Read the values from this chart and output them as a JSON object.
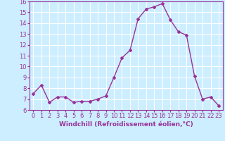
{
  "x": [
    0,
    1,
    2,
    3,
    4,
    5,
    6,
    7,
    8,
    9,
    10,
    11,
    12,
    13,
    14,
    15,
    16,
    17,
    18,
    19,
    20,
    21,
    22,
    23
  ],
  "y": [
    7.5,
    8.3,
    6.7,
    7.2,
    7.2,
    6.7,
    6.8,
    6.8,
    7.0,
    7.3,
    9.0,
    10.8,
    11.5,
    14.4,
    15.3,
    15.5,
    15.8,
    14.3,
    13.2,
    12.9,
    9.1,
    7.0,
    7.2,
    6.4
  ],
  "line_color": "#993399",
  "marker": "D",
  "marker_size": 2.0,
  "linewidth": 1.0,
  "xlabel": "Windchill (Refroidissement éolien,°C)",
  "ylabel": "",
  "xlim": [
    -0.5,
    23.5
  ],
  "ylim": [
    6,
    16
  ],
  "yticks": [
    6,
    7,
    8,
    9,
    10,
    11,
    12,
    13,
    14,
    15,
    16
  ],
  "xticks": [
    0,
    1,
    2,
    3,
    4,
    5,
    6,
    7,
    8,
    9,
    10,
    11,
    12,
    13,
    14,
    15,
    16,
    17,
    18,
    19,
    20,
    21,
    22,
    23
  ],
  "xtick_labels": [
    "0",
    "1",
    "2",
    "3",
    "4",
    "5",
    "6",
    "7",
    "8",
    "9",
    "10",
    "11",
    "12",
    "13",
    "14",
    "15",
    "16",
    "17",
    "18",
    "19",
    "20",
    "21",
    "22",
    "23"
  ],
  "background_color": "#cceeff",
  "grid_color": "#ffffff",
  "tick_color": "#993399",
  "label_color": "#993399",
  "xlabel_fontsize": 6.5,
  "tick_fontsize": 6.0
}
